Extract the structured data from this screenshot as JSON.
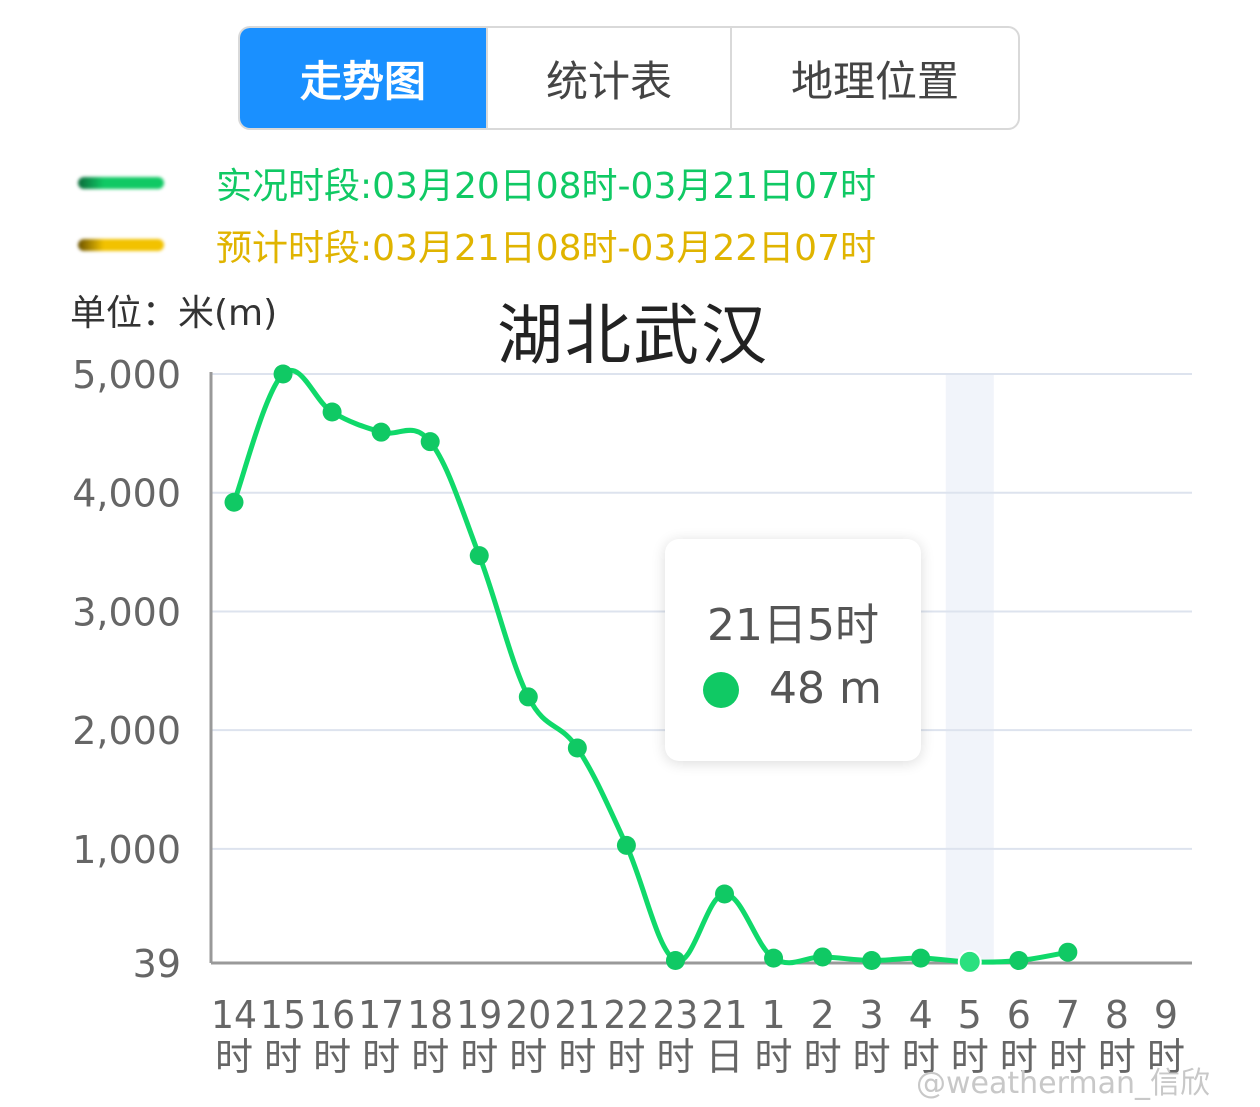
{
  "tabs": [
    {
      "label": "走势图",
      "active": true
    },
    {
      "label": "统计表",
      "active": false
    },
    {
      "label": "地理位置",
      "active": false
    }
  ],
  "legend": [
    {
      "text": "实况时段:03月20日08时-03月21日07时",
      "color": "#10c964"
    },
    {
      "text": "预计时段:03月21日08时-03月22日07时",
      "color": "#f2c200"
    }
  ],
  "unit_label": "单位：米(m)",
  "tooltip": {
    "title": "21日5时",
    "value": "48 m",
    "dot_color": "#10c964"
  },
  "watermark": "@weatherman_信欣",
  "colors": {
    "line": "#10d96a",
    "grid": "#dde3ee",
    "axis": "#999999",
    "highlight_band": "#f1f4fa"
  },
  "chart_data": {
    "type": "line",
    "title": "湖北武汉",
    "ylabel": "单位：米(m)",
    "ylim": [
      39,
      5000
    ],
    "yticks": [
      {
        "value": 5000,
        "label": "5,000"
      },
      {
        "value": 4000,
        "label": "4,000"
      },
      {
        "value": 3000,
        "label": "3,000"
      },
      {
        "value": 2000,
        "label": "2,000"
      },
      {
        "value": 1000,
        "label": "1,000"
      },
      {
        "value": 39,
        "label": "39"
      }
    ],
    "categories": [
      {
        "top": "14",
        "bottom": "时"
      },
      {
        "top": "15",
        "bottom": "时"
      },
      {
        "top": "16",
        "bottom": "时"
      },
      {
        "top": "17",
        "bottom": "时"
      },
      {
        "top": "18",
        "bottom": "时"
      },
      {
        "top": "19",
        "bottom": "时"
      },
      {
        "top": "20",
        "bottom": "时"
      },
      {
        "top": "21",
        "bottom": "时"
      },
      {
        "top": "22",
        "bottom": "时"
      },
      {
        "top": "23",
        "bottom": "时"
      },
      {
        "top": "21",
        "bottom": "日"
      },
      {
        "top": "1",
        "bottom": "时"
      },
      {
        "top": "2",
        "bottom": "时"
      },
      {
        "top": "3",
        "bottom": "时"
      },
      {
        "top": "4",
        "bottom": "时"
      },
      {
        "top": "5",
        "bottom": "时"
      },
      {
        "top": "6",
        "bottom": "时"
      },
      {
        "top": "7",
        "bottom": "时"
      },
      {
        "top": "8",
        "bottom": "时"
      },
      {
        "top": "9",
        "bottom": "时"
      }
    ],
    "series": [
      {
        "values": [
          3920,
          5000,
          4680,
          4510,
          4430,
          3470,
          2280,
          1850,
          1030,
          60,
          620,
          80,
          90,
          60,
          80,
          48,
          60,
          130,
          null,
          null
        ]
      }
    ],
    "highlight_index": 15,
    "grid": true
  }
}
